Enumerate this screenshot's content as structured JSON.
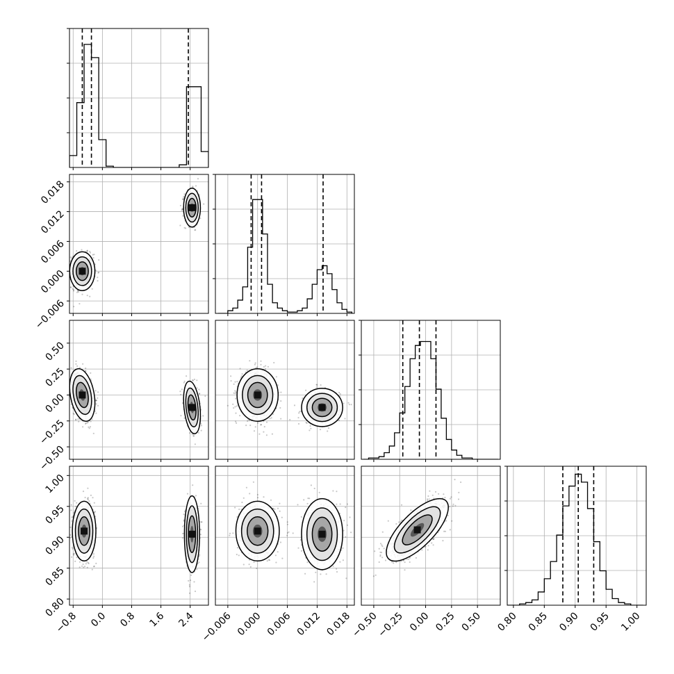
{
  "chart_data": {
    "type": "corner",
    "title": "",
    "parameters": [
      {
        "label": "",
        "range": [
          -0.9,
          2.9
        ],
        "ticks": [
          -0.8,
          0.0,
          0.8,
          1.6,
          2.4
        ],
        "tick_labels": [
          "−0.8",
          "0.0",
          "0.8",
          "1.6",
          "2.4"
        ],
        "quantiles": [
          -0.55,
          -0.3,
          2.35
        ],
        "histogram": {
          "bin_edges": [
            -0.9,
            -0.7,
            -0.5,
            -0.3,
            -0.1,
            0.1,
            0.3,
            0.5,
            0.7,
            0.9,
            1.1,
            1.3,
            1.5,
            1.7,
            1.9,
            2.1,
            2.3,
            2.5,
            2.7,
            2.9
          ],
          "heights": [
            0.09,
            0.49,
            0.93,
            0.83,
            0.21,
            0.01,
            0,
            0,
            0,
            0,
            0,
            0,
            0,
            0,
            0,
            0.02,
            0.61,
            0.61,
            0.12
          ]
        }
      },
      {
        "label": "",
        "range": [
          -0.0085,
          0.0195
        ],
        "ticks": [
          -0.006,
          0.0,
          0.006,
          0.012,
          0.018
        ],
        "tick_labels": [
          "−0.006",
          "0.000",
          "0.006",
          "0.012",
          "0.018"
        ],
        "quantiles": [
          -0.0013,
          0.0008,
          0.0132
        ],
        "histogram": {
          "bin_edges": [
            -0.008,
            -0.007,
            -0.006,
            -0.005,
            -0.004,
            -0.003,
            -0.002,
            -0.001,
            0.0,
            0.001,
            0.002,
            0.003,
            0.004,
            0.005,
            0.006,
            0.007,
            0.008,
            0.009,
            0.01,
            0.011,
            0.012,
            0.013,
            0.014,
            0.015,
            0.016,
            0.017,
            0.018,
            0.019
          ],
          "heights": [
            0,
            0,
            0.02,
            0.04,
            0.1,
            0.2,
            0.5,
            0.86,
            0.86,
            0.6,
            0.22,
            0.08,
            0.04,
            0.02,
            0.01,
            0.01,
            0.02,
            0.04,
            0.11,
            0.22,
            0.33,
            0.36,
            0.3,
            0.18,
            0.08,
            0.03,
            0.01
          ]
        }
      },
      {
        "label": "",
        "range": [
          -0.62,
          0.72
        ],
        "ticks": [
          -0.5,
          -0.25,
          0.0,
          0.25,
          0.5
        ],
        "tick_labels": [
          "−0.50",
          "−0.25",
          "0.00",
          "0.25",
          "0.50"
        ],
        "quantiles": [
          -0.22,
          -0.06,
          0.1
        ],
        "histogram": {
          "bin_edges": [
            -0.6,
            -0.55,
            -0.5,
            -0.45,
            -0.4,
            -0.35,
            -0.3,
            -0.25,
            -0.2,
            -0.15,
            -0.1,
            -0.05,
            0.0,
            0.05,
            0.1,
            0.15,
            0.2,
            0.25,
            0.3,
            0.35,
            0.4,
            0.45,
            0.5,
            0.55,
            0.6,
            0.65,
            0.7
          ],
          "heights": [
            0,
            0.01,
            0.01,
            0.02,
            0.05,
            0.1,
            0.2,
            0.35,
            0.55,
            0.76,
            0.86,
            0.89,
            0.89,
            0.76,
            0.53,
            0.31,
            0.15,
            0.07,
            0.03,
            0.01,
            0.01,
            0,
            0,
            0,
            0,
            0
          ]
        }
      },
      {
        "label": "",
        "range": [
          0.79,
          1.015
        ],
        "ticks": [
          0.8,
          0.85,
          0.9,
          0.95,
          1.0
        ],
        "tick_labels": [
          "0.80",
          "0.85",
          "0.90",
          "0.95",
          "1.00"
        ],
        "quantiles": [
          0.88,
          0.905,
          0.93
        ],
        "histogram": {
          "bin_edges": [
            0.79,
            0.8,
            0.81,
            0.82,
            0.83,
            0.84,
            0.85,
            0.86,
            0.87,
            0.88,
            0.89,
            0.9,
            0.91,
            0.92,
            0.93,
            0.94,
            0.95,
            0.96,
            0.97,
            0.98,
            0.99,
            1.0,
            1.01
          ],
          "heights": [
            0,
            0,
            0.01,
            0.02,
            0.04,
            0.1,
            0.2,
            0.33,
            0.53,
            0.75,
            0.9,
            0.99,
            0.93,
            0.73,
            0.48,
            0.26,
            0.12,
            0.05,
            0.02,
            0.01,
            0,
            0
          ]
        }
      }
    ],
    "panels": [
      {
        "row": 1,
        "col": 0,
        "clusters": [
          {
            "mean": [
              -0.55,
              0.0
            ],
            "sigma": [
              0.15,
              0.0017
            ],
            "weight": 0.58
          },
          {
            "mean": [
              2.45,
              0.0128
            ],
            "sigma": [
              0.1,
              0.0017
            ],
            "weight": 0.42
          }
        ]
      },
      {
        "row": 2,
        "col": 0,
        "clusters": [
          {
            "mean": [
              -0.55,
              0.0
            ],
            "sigma": [
              0.15,
              0.11
            ],
            "weight": 0.58,
            "rho": -0.3
          },
          {
            "mean": [
              2.45,
              -0.12
            ],
            "sigma": [
              0.1,
              0.11
            ],
            "weight": 0.42,
            "rho": -0.3
          }
        ]
      },
      {
        "row": 2,
        "col": 1,
        "clusters": [
          {
            "mean": [
              0.0,
              0.0
            ],
            "sigma": [
              0.0018,
              0.11
            ],
            "weight": 0.58
          },
          {
            "mean": [
              0.013,
              -0.12
            ],
            "sigma": [
              0.0018,
              0.08
            ],
            "weight": 0.42
          }
        ]
      },
      {
        "row": 3,
        "col": 0,
        "clusters": [
          {
            "mean": [
              -0.5,
              0.91
            ],
            "sigma": [
              0.14,
              0.021
            ],
            "weight": 0.58
          },
          {
            "mean": [
              2.45,
              0.905
            ],
            "sigma": [
              0.09,
              0.027
            ],
            "weight": 0.42
          }
        ]
      },
      {
        "row": 3,
        "col": 1,
        "clusters": [
          {
            "mean": [
              0.0,
              0.91
            ],
            "sigma": [
              0.0019,
              0.021
            ],
            "weight": 0.58
          },
          {
            "mean": [
              0.013,
              0.905
            ],
            "sigma": [
              0.0018,
              0.025
            ],
            "weight": 0.42
          }
        ]
      },
      {
        "row": 3,
        "col": 2,
        "clusters": [
          {
            "mean": [
              -0.08,
              0.912
            ],
            "sigma": [
              0.13,
              0.022
            ],
            "weight": 1.0,
            "rho": 0.72
          }
        ]
      }
    ],
    "grid": true,
    "legend": "none"
  }
}
